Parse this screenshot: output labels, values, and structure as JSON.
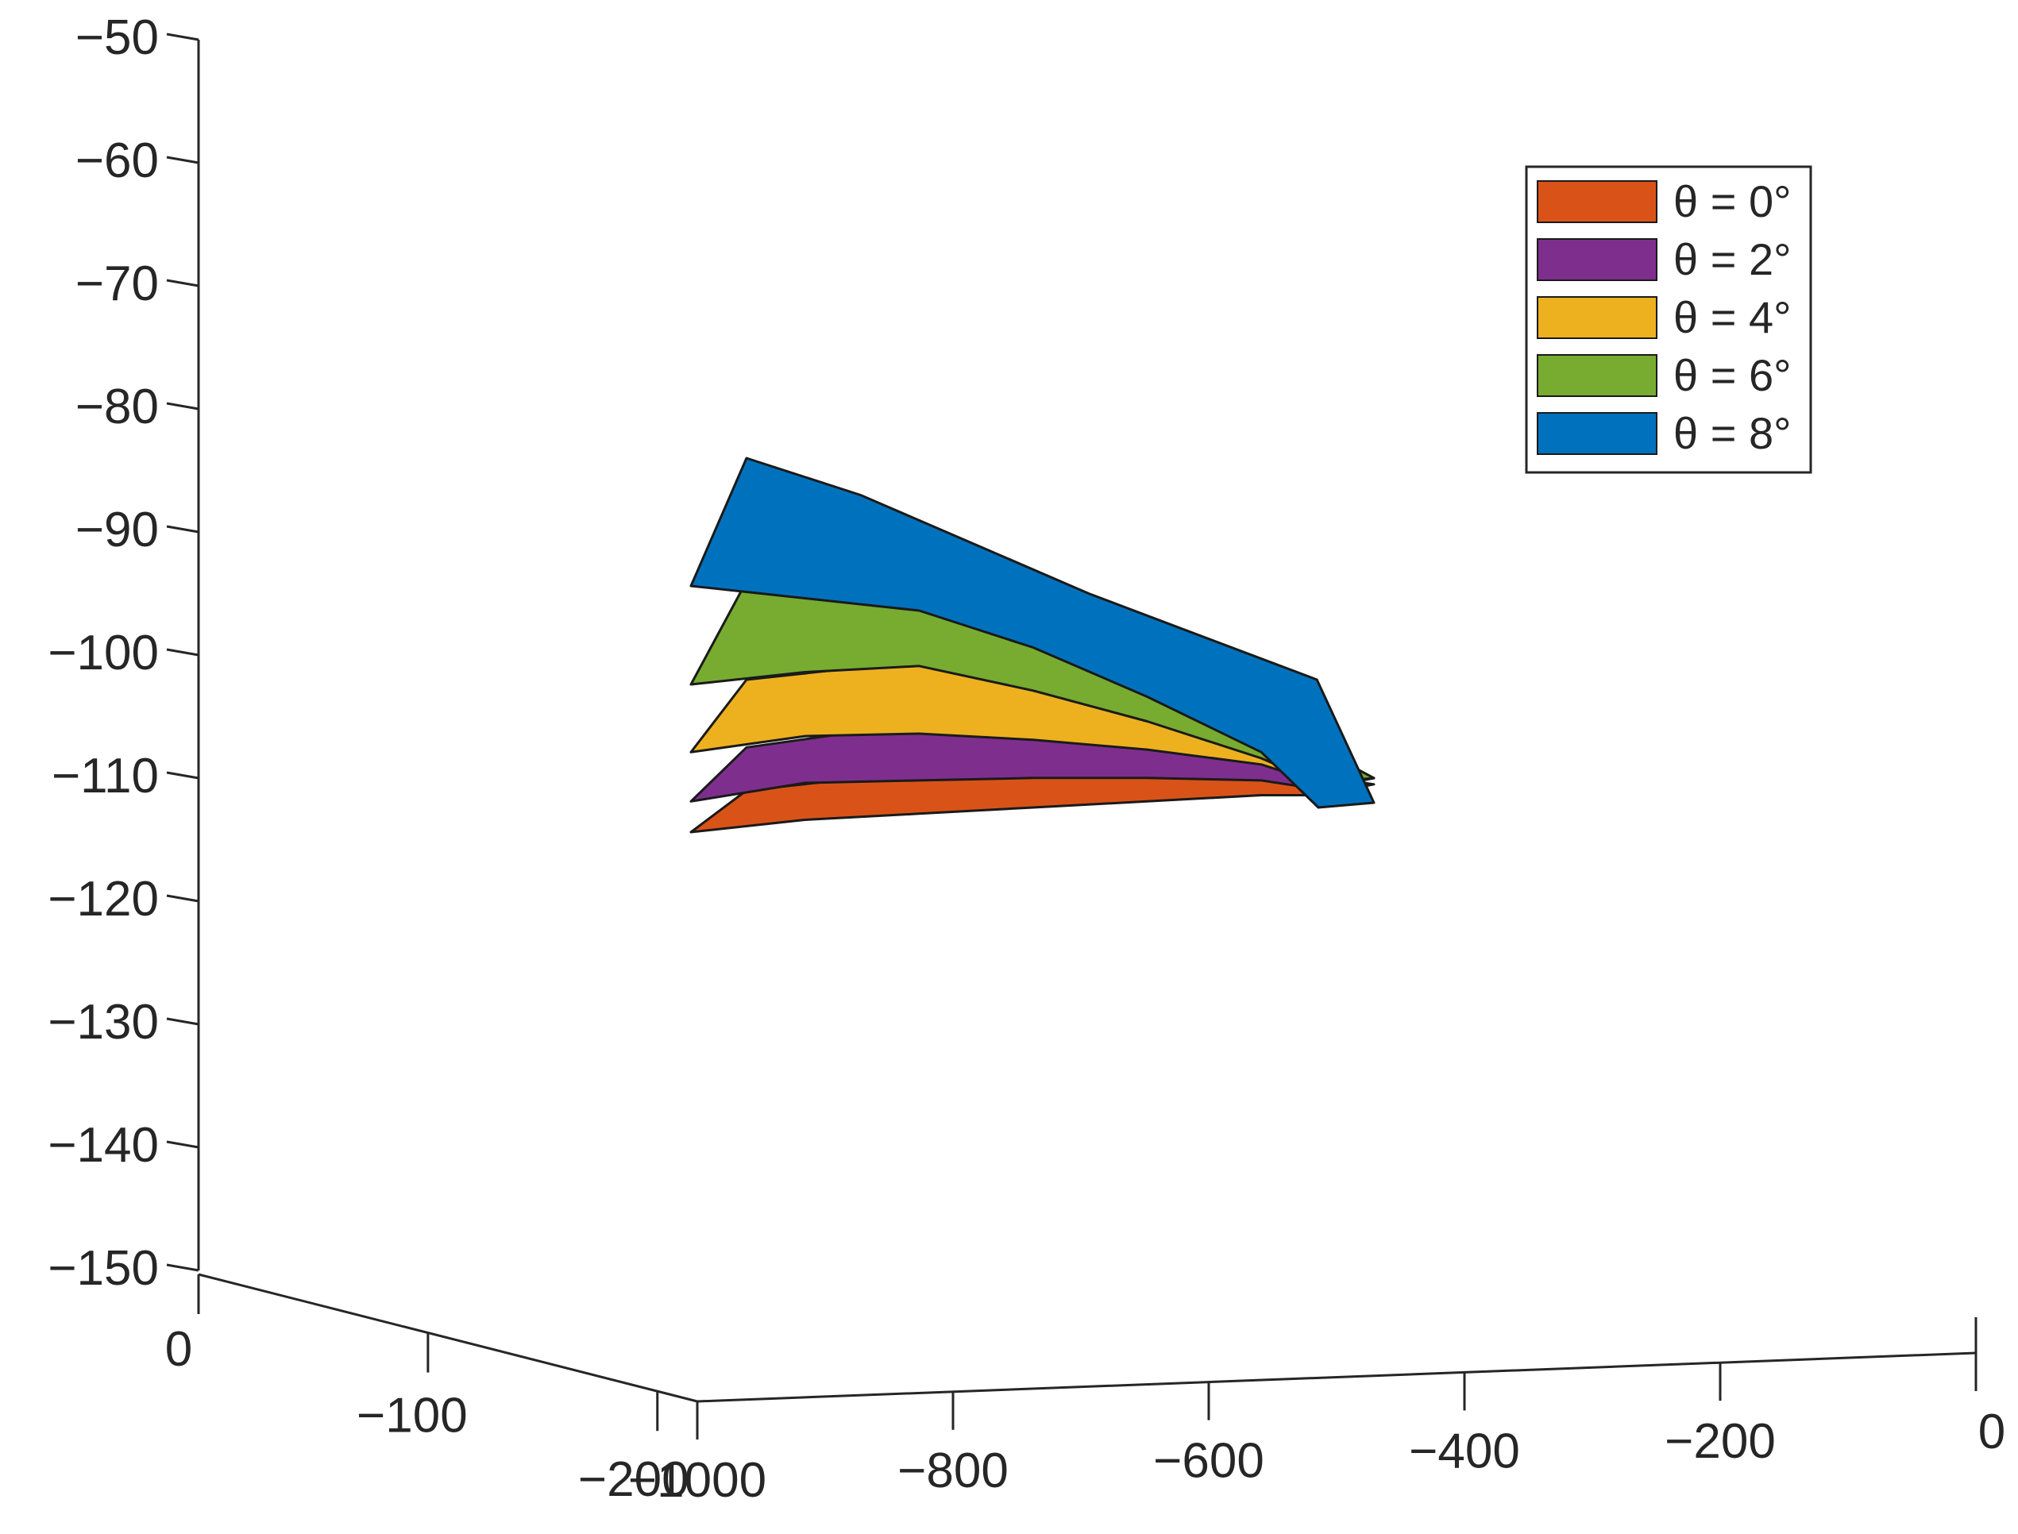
{
  "chart_data": {
    "type": "surface3d",
    "z_axis": {
      "ticks": [
        -50,
        -60,
        -70,
        -80,
        -90,
        -100,
        -110,
        -120,
        -130,
        -140,
        -150
      ],
      "tick_labels": [
        "−50",
        "−60",
        "−70",
        "−80",
        "−90",
        "−100",
        "−110",
        "−120",
        "−130",
        "−140",
        "−150"
      ],
      "range": [
        -150,
        -50
      ]
    },
    "x_axis": {
      "ticks": [
        -1000,
        -800,
        -600,
        -400,
        -200,
        0
      ],
      "tick_labels": [
        "−1000",
        "−800",
        "−600",
        "−400",
        "−200",
        "0"
      ],
      "range": [
        -1000,
        0
      ]
    },
    "y_axis": {
      "ticks": [
        0,
        -100,
        -200
      ],
      "tick_labels": [
        "0",
        "−100",
        "−200"
      ],
      "range": [
        -200,
        0
      ]
    },
    "grid": false,
    "legend_position": "top-right",
    "series": [
      {
        "name": "θ = 0°",
        "color": "#D95319",
        "x": [
          -1000,
          -900,
          -800,
          -700,
          -600,
          -500,
          -450
        ],
        "z_near": [
          -114,
          -113,
          -112.5,
          -112,
          -111.5,
          -111,
          -111
        ],
        "z_far": [
          -111,
          -110,
          -109.8,
          -109.6,
          -109.6,
          -109.8,
          -110.5
        ]
      },
      {
        "name": "θ = 2°",
        "color": "#7E2F8E",
        "x": [
          -1000,
          -900,
          -800,
          -700,
          -600,
          -500,
          -450
        ],
        "z_near": [
          -111.5,
          -110,
          -109.8,
          -109.6,
          -109.6,
          -109.8,
          -110.5
        ],
        "z_far": [
          -107.5,
          -106.2,
          -106,
          -106.5,
          -107.3,
          -108.5,
          -110
        ]
      },
      {
        "name": "θ = 4°",
        "color": "#EDB120",
        "x": [
          -1000,
          -900,
          -800,
          -700,
          -600,
          -500,
          -450
        ],
        "z_near": [
          -107.5,
          -106.2,
          -106,
          -106.5,
          -107.3,
          -108.5,
          -110
        ],
        "z_far": [
          -102,
          -101,
          -100.5,
          -102.5,
          -105,
          -108,
          -110
        ]
      },
      {
        "name": "θ = 6°",
        "color": "#77AC30",
        "x": [
          -1000,
          -900,
          -800,
          -700,
          -600,
          -500,
          -450
        ],
        "z_near": [
          -102,
          -101,
          -100.5,
          -102.5,
          -105,
          -108,
          -110
        ],
        "z_far": [
          -94,
          -95,
          -96,
          -99,
          -103,
          -107.5,
          -110
        ]
      },
      {
        "name": "θ = 8°",
        "color": "#0072BD",
        "x": [
          -1000,
          -900,
          -800,
          -700,
          -600,
          -500,
          -450
        ],
        "z_near": [
          -94,
          -95,
          -96,
          -99,
          -103,
          -107.5,
          -112
        ],
        "z_far": [
          -84,
          -87,
          -91,
          -95,
          -98.5,
          -102,
          -112
        ]
      }
    ]
  }
}
